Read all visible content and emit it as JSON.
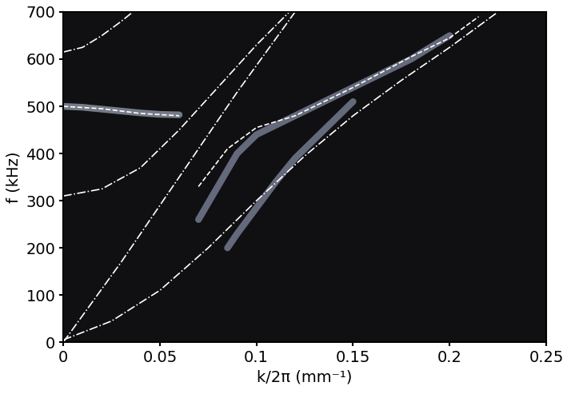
{
  "chart_data": {
    "type": "line",
    "x_label": "k/2π (mm⁻¹)",
    "y_label": "f (kHz)",
    "xlim": [
      0,
      0.25
    ],
    "xticks": [
      0,
      0.05,
      0.1,
      0.15,
      0.2,
      0.25
    ],
    "ylim": [
      0,
      700
    ],
    "yticks": [
      0,
      100,
      200,
      300,
      400,
      500,
      600,
      700
    ],
    "grid": false,
    "series": [
      {
        "color": "#c8d2e6",
        "line_style": "solid",
        "x": [
          0,
          0.01,
          0.02,
          0.03,
          0.04,
          0.05,
          0.06
        ],
        "values": [
          500,
          498,
          494,
          490,
          486,
          483,
          482
        ]
      },
      {
        "color": "#aab4d2",
        "line_style": "solid",
        "x": [
          0.07,
          0.08,
          0.09,
          0.1,
          0.12,
          0.15,
          0.18,
          0.2
        ],
        "values": [
          260,
          330,
          400,
          440,
          480,
          540,
          600,
          650
        ]
      },
      {
        "color": "#aab4d2",
        "line_style": "solid",
        "x": [
          0.085,
          0.09,
          0.1,
          0.11,
          0.12,
          0.13,
          0.14,
          0.15
        ],
        "values": [
          200,
          230,
          285,
          340,
          390,
          430,
          470,
          510
        ]
      },
      {
        "color": "#ffffff",
        "line_style": "dashdot",
        "x": [
          0,
          0.03,
          0.06,
          0.09,
          0.12
        ],
        "values": [
          0,
          170,
          350,
          530,
          700
        ]
      },
      {
        "color": "#ffffff",
        "line_style": "dashdot",
        "x": [
          0,
          0.02,
          0.04,
          0.06,
          0.08,
          0.1,
          0.117
        ],
        "values": [
          310,
          325,
          370,
          450,
          540,
          630,
          700
        ]
      },
      {
        "color": "#ffffff",
        "line_style": "dashdot",
        "x": [
          0,
          0.01,
          0.02,
          0.03,
          0.036
        ],
        "values": [
          615,
          625,
          650,
          680,
          700
        ]
      },
      {
        "color": "#ffffff",
        "line_style": "dashdot",
        "x": [
          0,
          0.025,
          0.05,
          0.075,
          0.1,
          0.125,
          0.15,
          0.175,
          0.2,
          0.225
        ],
        "values": [
          5,
          45,
          110,
          200,
          300,
          395,
          480,
          555,
          625,
          700
        ]
      },
      {
        "color": "#ffffff",
        "line_style": "dashed",
        "x": [
          0,
          0.02,
          0.04,
          0.06
        ],
        "values": [
          500,
          495,
          485,
          480
        ]
      },
      {
        "color": "#ffffff",
        "line_style": "dashed",
        "x": [
          0.07,
          0.085,
          0.1,
          0.12,
          0.15,
          0.18,
          0.2,
          0.215
        ],
        "values": [
          330,
          410,
          455,
          480,
          540,
          605,
          645,
          690
        ]
      }
    ]
  }
}
